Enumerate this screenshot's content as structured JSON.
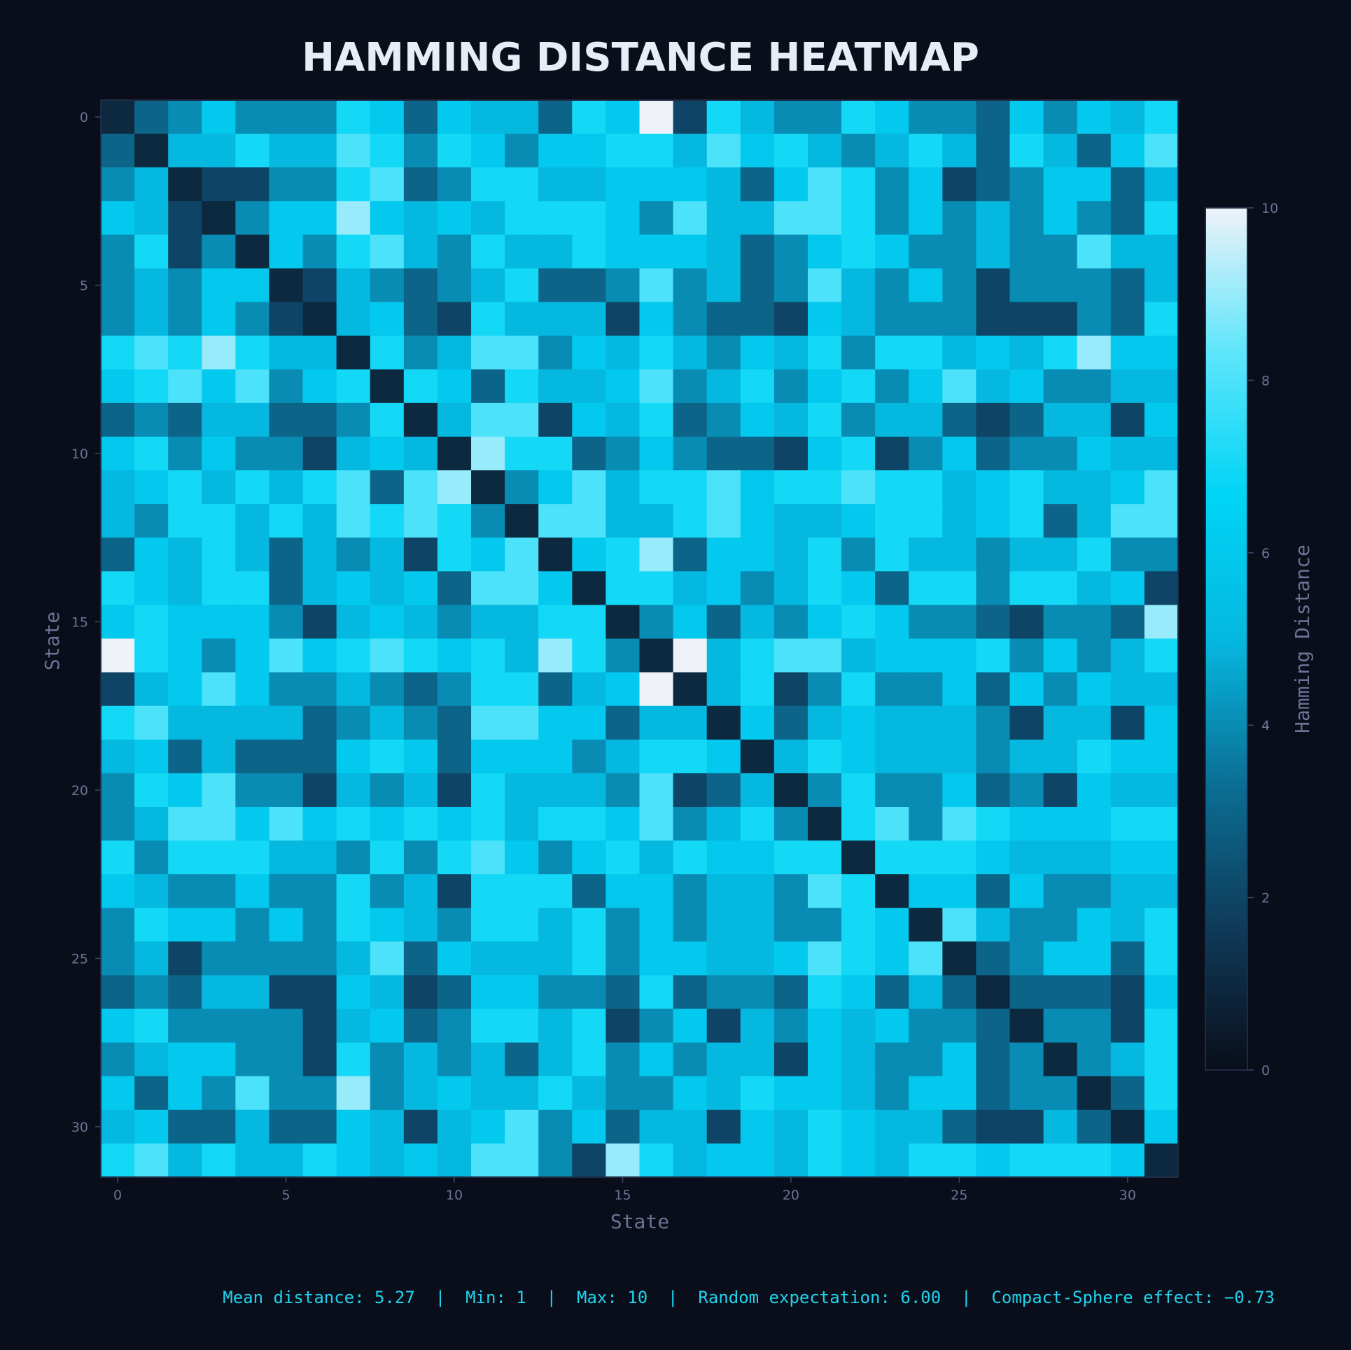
{
  "chart_data": {
    "type": "heatmap",
    "title": "HAMMING DISTANCE HEATMAP",
    "xlabel": "State",
    "ylabel": "State",
    "x_ticks": [
      0,
      5,
      10,
      15,
      20,
      25,
      30
    ],
    "y_ticks": [
      0,
      5,
      10,
      15,
      20,
      25,
      30
    ],
    "colorbar": {
      "label": "Hamming Distance",
      "range": [
        0,
        10
      ],
      "ticks": [
        0,
        2,
        4,
        6,
        8,
        10
      ],
      "colors": [
        "#0a0e1a",
        "#0f3b5a",
        "#0b6f95",
        "#05b8e0",
        "#00d4f5",
        "#5ee6fb",
        "#eef2f8"
      ]
    },
    "size": 32,
    "matrix": [
      [
        1,
        3,
        4,
        6,
        4,
        4,
        4,
        7,
        6,
        3,
        6,
        5,
        5,
        3,
        7,
        6,
        10,
        2,
        7,
        5,
        4,
        4,
        7,
        6,
        4,
        4,
        3,
        6,
        4,
        6,
        5,
        7
      ],
      [
        3,
        1,
        5,
        5,
        7,
        5,
        5,
        8,
        7,
        4,
        7,
        6,
        4,
        6,
        6,
        7,
        7,
        5,
        8,
        6,
        7,
        5,
        4,
        5,
        7,
        5,
        3,
        7,
        5,
        3,
        6,
        8
      ],
      [
        4,
        5,
        1,
        2,
        2,
        4,
        4,
        7,
        8,
        3,
        4,
        7,
        7,
        5,
        5,
        6,
        6,
        6,
        5,
        3,
        6,
        8,
        7,
        4,
        6,
        2,
        3,
        4,
        6,
        6,
        3,
        5
      ],
      [
        6,
        5,
        2,
        1,
        4,
        6,
        6,
        9,
        6,
        5,
        6,
        5,
        7,
        7,
        7,
        6,
        4,
        8,
        5,
        5,
        8,
        8,
        7,
        4,
        6,
        4,
        5,
        4,
        6,
        4,
        3,
        7
      ],
      [
        4,
        7,
        2,
        4,
        1,
        6,
        4,
        7,
        8,
        5,
        4,
        7,
        5,
        5,
        7,
        6,
        6,
        6,
        5,
        3,
        4,
        6,
        7,
        6,
        4,
        4,
        5,
        4,
        4,
        8,
        5,
        5
      ],
      [
        4,
        5,
        4,
        6,
        6,
        1,
        2,
        5,
        4,
        3,
        4,
        5,
        7,
        3,
        3,
        4,
        8,
        4,
        5,
        3,
        4,
        8,
        5,
        4,
        6,
        4,
        2,
        4,
        4,
        4,
        3,
        5
      ],
      [
        4,
        5,
        4,
        6,
        4,
        2,
        1,
        5,
        6,
        3,
        2,
        7,
        5,
        5,
        5,
        2,
        6,
        4,
        3,
        3,
        2,
        6,
        5,
        4,
        4,
        4,
        2,
        2,
        2,
        4,
        3,
        7
      ],
      [
        7,
        8,
        7,
        9,
        7,
        5,
        5,
        1,
        7,
        4,
        5,
        8,
        8,
        4,
        6,
        5,
        7,
        5,
        4,
        6,
        5,
        7,
        4,
        7,
        7,
        5,
        6,
        5,
        7,
        9,
        6,
        6
      ],
      [
        6,
        7,
        8,
        6,
        8,
        4,
        6,
        7,
        1,
        7,
        6,
        3,
        7,
        5,
        5,
        6,
        8,
        4,
        5,
        7,
        4,
        6,
        7,
        4,
        6,
        8,
        5,
        6,
        4,
        4,
        5,
        5
      ],
      [
        3,
        4,
        3,
        5,
        5,
        3,
        3,
        4,
        7,
        1,
        5,
        8,
        8,
        2,
        6,
        5,
        7,
        3,
        4,
        6,
        5,
        7,
        4,
        5,
        5,
        3,
        2,
        3,
        5,
        5,
        2,
        6
      ],
      [
        6,
        7,
        4,
        6,
        4,
        4,
        2,
        5,
        6,
        5,
        1,
        9,
        7,
        7,
        3,
        4,
        6,
        4,
        3,
        3,
        2,
        6,
        7,
        2,
        4,
        6,
        3,
        4,
        4,
        6,
        5,
        5
      ],
      [
        5,
        6,
        7,
        5,
        7,
        5,
        7,
        8,
        3,
        8,
        9,
        1,
        4,
        6,
        8,
        5,
        7,
        7,
        8,
        6,
        7,
        7,
        8,
        7,
        7,
        5,
        6,
        7,
        5,
        5,
        6,
        8
      ],
      [
        5,
        4,
        7,
        7,
        5,
        7,
        5,
        8,
        7,
        8,
        7,
        4,
        1,
        8,
        8,
        5,
        5,
        7,
        8,
        6,
        5,
        5,
        6,
        7,
        7,
        5,
        6,
        7,
        3,
        5,
        8,
        8
      ],
      [
        3,
        6,
        5,
        7,
        5,
        3,
        5,
        4,
        5,
        2,
        7,
        6,
        8,
        1,
        6,
        7,
        9,
        3,
        6,
        6,
        5,
        7,
        4,
        7,
        5,
        5,
        4,
        5,
        5,
        7,
        4,
        4
      ],
      [
        7,
        6,
        5,
        7,
        7,
        3,
        5,
        6,
        5,
        6,
        3,
        8,
        8,
        6,
        1,
        7,
        7,
        5,
        6,
        4,
        5,
        7,
        6,
        3,
        7,
        7,
        4,
        7,
        7,
        5,
        6,
        2
      ],
      [
        6,
        7,
        6,
        6,
        6,
        4,
        2,
        5,
        6,
        5,
        4,
        5,
        5,
        7,
        7,
        1,
        4,
        6,
        3,
        5,
        4,
        6,
        7,
        6,
        4,
        4,
        3,
        2,
        4,
        4,
        3,
        9
      ],
      [
        10,
        7,
        6,
        4,
        6,
        8,
        6,
        7,
        8,
        7,
        6,
        7,
        5,
        9,
        7,
        4,
        1,
        10,
        5,
        7,
        8,
        8,
        5,
        6,
        6,
        6,
        7,
        4,
        6,
        4,
        5,
        7
      ],
      [
        2,
        5,
        6,
        8,
        6,
        4,
        4,
        5,
        4,
        3,
        4,
        7,
        7,
        3,
        5,
        6,
        10,
        1,
        5,
        7,
        2,
        4,
        7,
        4,
        4,
        6,
        3,
        6,
        4,
        6,
        5,
        5
      ],
      [
        7,
        8,
        5,
        5,
        5,
        5,
        3,
        4,
        5,
        4,
        3,
        8,
        8,
        6,
        6,
        3,
        5,
        5,
        1,
        6,
        3,
        5,
        6,
        5,
        5,
        5,
        4,
        2,
        5,
        5,
        2,
        6
      ],
      [
        5,
        6,
        3,
        5,
        3,
        3,
        3,
        6,
        7,
        6,
        3,
        6,
        6,
        6,
        4,
        5,
        7,
        7,
        6,
        1,
        5,
        7,
        6,
        5,
        5,
        5,
        4,
        5,
        5,
        7,
        6,
        6
      ],
      [
        4,
        7,
        6,
        8,
        4,
        4,
        2,
        5,
        4,
        5,
        2,
        7,
        5,
        5,
        5,
        4,
        8,
        2,
        3,
        5,
        1,
        4,
        7,
        4,
        4,
        6,
        3,
        4,
        2,
        6,
        5,
        5
      ],
      [
        4,
        5,
        8,
        8,
        6,
        8,
        6,
        7,
        6,
        7,
        6,
        7,
        5,
        7,
        7,
        6,
        8,
        4,
        5,
        7,
        4,
        1,
        7,
        8,
        4,
        8,
        7,
        6,
        6,
        6,
        7,
        7
      ],
      [
        7,
        4,
        7,
        7,
        7,
        5,
        5,
        4,
        7,
        4,
        7,
        8,
        6,
        4,
        6,
        7,
        5,
        7,
        6,
        6,
        7,
        7,
        1,
        7,
        7,
        7,
        6,
        5,
        5,
        5,
        6,
        6
      ],
      [
        6,
        5,
        4,
        4,
        6,
        4,
        4,
        7,
        4,
        5,
        2,
        7,
        7,
        7,
        3,
        6,
        6,
        4,
        5,
        5,
        4,
        8,
        7,
        1,
        6,
        6,
        3,
        6,
        4,
        4,
        5,
        5
      ],
      [
        4,
        7,
        6,
        6,
        4,
        6,
        4,
        7,
        6,
        5,
        4,
        7,
        7,
        5,
        7,
        4,
        6,
        4,
        5,
        5,
        4,
        4,
        7,
        6,
        1,
        8,
        5,
        4,
        4,
        6,
        5,
        7
      ],
      [
        4,
        5,
        2,
        4,
        4,
        4,
        4,
        5,
        8,
        3,
        6,
        5,
        5,
        5,
        7,
        4,
        6,
        6,
        5,
        5,
        6,
        8,
        7,
        6,
        8,
        1,
        3,
        4,
        6,
        6,
        3,
        7
      ],
      [
        3,
        4,
        3,
        5,
        5,
        2,
        2,
        6,
        5,
        2,
        3,
        6,
        6,
        4,
        4,
        3,
        7,
        3,
        4,
        4,
        3,
        7,
        6,
        3,
        5,
        3,
        1,
        3,
        3,
        3,
        2,
        6
      ],
      [
        6,
        7,
        4,
        4,
        4,
        4,
        2,
        5,
        6,
        3,
        4,
        7,
        7,
        5,
        7,
        2,
        4,
        6,
        2,
        5,
        4,
        6,
        5,
        6,
        4,
        4,
        3,
        1,
        4,
        4,
        2,
        7
      ],
      [
        4,
        5,
        6,
        6,
        4,
        4,
        2,
        7,
        4,
        5,
        4,
        5,
        3,
        5,
        7,
        4,
        6,
        4,
        5,
        5,
        2,
        6,
        5,
        4,
        4,
        6,
        3,
        4,
        1,
        4,
        5,
        7
      ],
      [
        6,
        3,
        6,
        4,
        8,
        4,
        4,
        9,
        4,
        5,
        6,
        5,
        5,
        7,
        5,
        4,
        4,
        6,
        5,
        7,
        6,
        6,
        5,
        4,
        6,
        6,
        3,
        4,
        4,
        1,
        3,
        7
      ],
      [
        5,
        6,
        3,
        3,
        5,
        3,
        3,
        6,
        5,
        2,
        5,
        6,
        8,
        4,
        6,
        3,
        5,
        5,
        2,
        6,
        5,
        7,
        6,
        5,
        5,
        3,
        2,
        2,
        5,
        3,
        1,
        6
      ],
      [
        7,
        8,
        5,
        7,
        5,
        5,
        7,
        6,
        5,
        6,
        5,
        8,
        8,
        4,
        2,
        9,
        7,
        5,
        6,
        6,
        5,
        7,
        6,
        5,
        7,
        7,
        6,
        7,
        7,
        7,
        6,
        1
      ]
    ]
  },
  "footer": "Mean distance: 5.27  |  Min: 1  |  Max: 10  |  Random expectation: 6.00  |  Compact-Sphere effect: −0.73"
}
